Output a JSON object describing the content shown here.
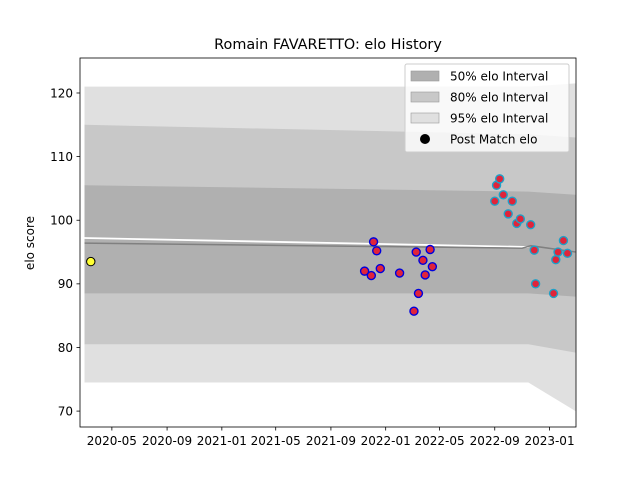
{
  "chart_data": {
    "type": "area",
    "title": "Romain FAVARETTO: elo History",
    "xlabel": "",
    "ylabel": "elo score",
    "x_tick_labels": [
      "2020-05",
      "2020-09",
      "2021-01",
      "2021-05",
      "2021-09",
      "2022-01",
      "2022-05",
      "2022-09",
      "2023-01"
    ],
    "x_ticks": [
      "2020-05-01",
      "2020-09-01",
      "2021-01-01",
      "2021-05-01",
      "2021-09-01",
      "2022-01-01",
      "2022-05-01",
      "2022-09-01",
      "2023-01-01"
    ],
    "xlim": [
      "2020-02-20",
      "2023-03-01"
    ],
    "y_ticks": [
      70,
      80,
      90,
      100,
      110,
      120
    ],
    "ylim": [
      67.5,
      125.5
    ],
    "grid": false,
    "legend_position": "top-right",
    "legend": [
      {
        "label": "50% elo Interval",
        "kind": "patch",
        "color": "#b0b0b0"
      },
      {
        "label": "80% elo Interval",
        "kind": "patch",
        "color": "#c8c8c8"
      },
      {
        "label": "95% elo Interval",
        "kind": "patch",
        "color": "#e0e0e0"
      },
      {
        "label": "Post Match elo",
        "kind": "marker",
        "color": "#000000"
      }
    ],
    "colors": {
      "band50": "#b0b0b0",
      "band80": "#c8c8c8",
      "band95": "#e0e0e0",
      "mean_line": "#808080",
      "prior_line": "#ffffff",
      "point_fill": "#e0243a",
      "point_edge_first": "#0000dd",
      "point_edge_second": "#1fa0c8",
      "initial_point_fill": "#ffff33"
    },
    "bands": [
      {
        "name": "95% elo Interval",
        "x": [
          "2020-03-01",
          "2022-11-15",
          "2023-02-28"
        ],
        "upper": [
          121.0,
          121.0,
          121.5
        ],
        "lower": [
          74.5,
          74.5,
          70.0
        ]
      },
      {
        "name": "80% elo Interval",
        "x": [
          "2020-03-01",
          "2022-11-15",
          "2023-02-28"
        ],
        "upper": [
          115.0,
          113.5,
          113.0
        ],
        "lower": [
          80.5,
          80.5,
          79.2
        ]
      },
      {
        "name": "50% elo Interval",
        "x": [
          "2020-03-01",
          "2022-11-15",
          "2023-02-28"
        ],
        "upper": [
          105.5,
          104.5,
          104.0
        ],
        "lower": [
          88.5,
          88.5,
          88.0
        ]
      }
    ],
    "mean_line": {
      "x": [
        "2020-03-01",
        "2022-11-01",
        "2022-11-20",
        "2023-02-28"
      ],
      "y": [
        96.4,
        95.6,
        96.0,
        95.0
      ]
    },
    "prior_line": {
      "x": [
        "2020-03-01",
        "2022-11-15"
      ],
      "y": [
        97.2,
        95.8
      ]
    },
    "initial_point": {
      "x": "2020-03-15",
      "y": 93.5
    },
    "post_match_elo": [
      {
        "x": "2021-11-15",
        "y": 92.0
      },
      {
        "x": "2021-11-30",
        "y": 91.3
      },
      {
        "x": "2021-12-05",
        "y": 96.6
      },
      {
        "x": "2021-12-12",
        "y": 95.2
      },
      {
        "x": "2021-12-20",
        "y": 92.4
      },
      {
        "x": "2022-02-01",
        "y": 91.7
      },
      {
        "x": "2022-03-05",
        "y": 85.7
      },
      {
        "x": "2022-03-10",
        "y": 95.0
      },
      {
        "x": "2022-03-15",
        "y": 88.5
      },
      {
        "x": "2022-03-25",
        "y": 93.7
      },
      {
        "x": "2022-03-30",
        "y": 91.4
      },
      {
        "x": "2022-04-10",
        "y": 95.4
      },
      {
        "x": "2022-04-15",
        "y": 92.7
      },
      {
        "x": "2022-09-01",
        "y": 103.0
      },
      {
        "x": "2022-09-05",
        "y": 105.5
      },
      {
        "x": "2022-09-12",
        "y": 106.5
      },
      {
        "x": "2022-09-20",
        "y": 104.0
      },
      {
        "x": "2022-10-01",
        "y": 101.0
      },
      {
        "x": "2022-10-10",
        "y": 103.0
      },
      {
        "x": "2022-10-20",
        "y": 99.5
      },
      {
        "x": "2022-10-28",
        "y": 100.2
      },
      {
        "x": "2022-11-20",
        "y": 99.3
      },
      {
        "x": "2022-11-28",
        "y": 95.3
      },
      {
        "x": "2022-12-01",
        "y": 90.0
      },
      {
        "x": "2023-01-10",
        "y": 88.5
      },
      {
        "x": "2023-01-15",
        "y": 93.8
      },
      {
        "x": "2023-01-20",
        "y": 95.0
      },
      {
        "x": "2023-02-01",
        "y": 96.8
      },
      {
        "x": "2023-02-10",
        "y": 94.8
      }
    ]
  }
}
